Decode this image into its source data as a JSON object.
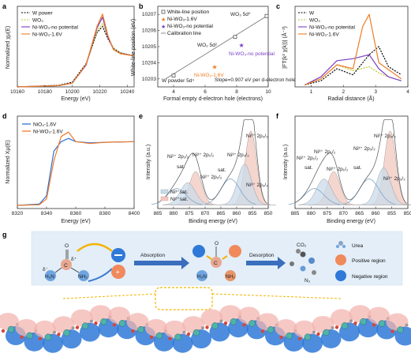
{
  "panels": {
    "a": {
      "label": "a",
      "xlabel": "Energy (eV)",
      "ylabel": "Normalized χμ(E)",
      "xticks": [
        "10160",
        "10180",
        "10200",
        "10220",
        "10240"
      ],
      "legend": [
        "W power",
        "WO₃",
        "Ni-WO₃-no potential",
        "Ni-WO₃-1.6V"
      ]
    },
    "b": {
      "label": "b",
      "xlabel": "Formal empty d-electron hole (electrons)",
      "ylabel": "White-line position (eV)",
      "xticks": [
        "4",
        "6",
        "8",
        "10"
      ],
      "yticks": [
        "10203",
        "10204",
        "10205",
        "10206",
        "10207"
      ],
      "legend": [
        "White-line position",
        "Ni-WO₃-1.6V",
        "Ni-WO₃-no potential",
        "Calibration line"
      ],
      "points": {
        "w_powder": "W powder 5d⁴",
        "wo2": "WO₂ 5d²",
        "wo3": "WO₃ 5d⁰",
        "ni_16": "Ni-WO₃-1.6V",
        "ni_np": "Ni-WO₃-no potential"
      },
      "slope": "Slope=0.907 eV per d-electron hole"
    },
    "c": {
      "label": "c",
      "xlabel": "Radial distance (Å)",
      "ylabel": "|FT(k² χ(k))| (Å⁻³)",
      "xticks": [
        "1",
        "2",
        "3",
        "4"
      ],
      "legend": [
        "W",
        "WO₃",
        "Ni-WO₃-no potential",
        "Ni-WO₃-1.6V"
      ]
    },
    "d": {
      "label": "d",
      "xlabel": "Energy (eV)",
      "ylabel": "Normalized Xμ(E)",
      "xticks": [
        "8320",
        "8340",
        "8360",
        "8380",
        "8400"
      ],
      "legend": [
        "NiO₄-1.6V",
        "Ni-WO₃-1.6V"
      ]
    },
    "e": {
      "label": "e",
      "xlabel": "Binding energy (eV)",
      "ylabel": "Intensity (a.u.)",
      "xticks": [
        "885",
        "880",
        "875",
        "870",
        "865",
        "860",
        "855",
        "850"
      ],
      "peaks": [
        "Ni²⁺ 2p₃/₂",
        "Ni³⁺ 2p₃/₂",
        "Ni³⁺ 2p₁/₂",
        "Ni²⁺ 2p₁/₂",
        "Ni²⁺ 2p₁/₂",
        "Ni³⁺ 2p₃/₂"
      ],
      "sat": [
        "sat.",
        "sat."
      ],
      "legend": [
        "Ni³⁺sat.",
        "Ni²⁺sat."
      ]
    },
    "f": {
      "label": "f",
      "xlabel": "Binding energy (eV)",
      "ylabel": "Intensity (a.u.)",
      "xticks": [
        "885",
        "880",
        "875",
        "870",
        "865",
        "860",
        "855",
        "850"
      ],
      "peaks": [
        "Ni²⁺ 2p₃/₂",
        "Ni³⁺ 2p₃/₂",
        "Ni³⁺ 2p₁/₂",
        "Ni²⁺ 2p₁/₂",
        "Ni²⁺ 2p₁/₂",
        "Ni³⁺ 2p₃/₂"
      ],
      "sat": [
        "sat.",
        "sat."
      ]
    },
    "g": {
      "label": "g",
      "absorption": "Absorption",
      "desorption": "Desorption",
      "co2": "CO₂",
      "n2": "N₂",
      "legend": [
        "Urea",
        "Positive region",
        "Negative region"
      ],
      "urea": {
        "o": "O",
        "c": "C",
        "nh2_left": "H₂N",
        "nh2_right": "NH₂",
        "delta_minus": "δ⁻",
        "delta_plus": "δ⁺"
      }
    }
  },
  "colors": {
    "w": "#000000",
    "wo3": "#b8c636",
    "ni_np": "#7a3fc4",
    "ni_16": "#ee7c22",
    "blue": "#2f6fd6",
    "orange": "#f07a2a",
    "ni3": "#c9dbe9",
    "ni2": "#f1c8bf"
  },
  "chart_data": [
    {
      "type": "line",
      "panel": "a",
      "xlabel": "Energy (eV)",
      "ylabel": "Normalized χμ(E)",
      "xlim": [
        10160,
        10245
      ],
      "series": [
        {
          "name": "W power",
          "x": [
            10160,
            10190,
            10200,
            10210,
            10218,
            10222,
            10226,
            10230,
            10235,
            10245
          ],
          "y": [
            0.0,
            0.05,
            0.15,
            0.75,
            1.75,
            1.95,
            1.55,
            1.25,
            1.1,
            1.0
          ]
        },
        {
          "name": "WO₃",
          "x": [
            10160,
            10190,
            10200,
            10210,
            10218,
            10222,
            10226,
            10230,
            10235,
            10245
          ],
          "y": [
            0.0,
            0.04,
            0.12,
            0.7,
            1.8,
            2.05,
            1.6,
            1.25,
            1.1,
            1.0
          ]
        },
        {
          "name": "Ni-WO₃-no potential",
          "x": [
            10160,
            10190,
            10200,
            10210,
            10218,
            10222,
            10226,
            10230,
            10235,
            10245
          ],
          "y": [
            0.0,
            0.04,
            0.12,
            0.7,
            1.9,
            2.25,
            1.6,
            1.2,
            1.08,
            1.0
          ]
        },
        {
          "name": "Ni-WO₃-1.6V",
          "x": [
            10160,
            10190,
            10200,
            10210,
            10218,
            10222,
            10226,
            10230,
            10235,
            10245
          ],
          "y": [
            0.0,
            0.04,
            0.12,
            0.72,
            1.95,
            2.35,
            1.65,
            1.2,
            1.07,
            1.0
          ]
        }
      ]
    },
    {
      "type": "scatter",
      "panel": "b",
      "xlabel": "Formal empty d-electron hole (electrons)",
      "ylabel": "White-line position (eV)",
      "xlim": [
        3,
        10
      ],
      "ylim": [
        10202.5,
        10207.5
      ],
      "series": [
        {
          "name": "White-line position",
          "x": [
            4.0,
            7.9,
            9.9
          ],
          "y": [
            10203.2,
            10205.6,
            10206.9
          ]
        },
        {
          "name": "Ni-WO₃-1.6V",
          "x": [
            6.6
          ],
          "y": [
            10203.75
          ]
        },
        {
          "name": "Ni-WO₃-no potential",
          "x": [
            8.3
          ],
          "y": [
            10205.1
          ]
        },
        {
          "name": "Calibration line",
          "x": [
            3.5,
            10.0
          ],
          "y": [
            10203.0,
            10206.95
          ]
        }
      ]
    },
    {
      "type": "line",
      "panel": "c",
      "xlabel": "Radial distance (Å)",
      "xlim": [
        0.5,
        4
      ],
      "series": [
        {
          "name": "W",
          "x": [
            0.8,
            1.3,
            1.8,
            2.3,
            2.8,
            3.1,
            3.4,
            3.8
          ],
          "y": [
            0.1,
            0.3,
            0.9,
            0.6,
            1.6,
            2.0,
            1.0,
            0.6
          ]
        },
        {
          "name": "WO₃",
          "x": [
            0.8,
            1.3,
            1.8,
            2.3,
            2.8,
            3.1,
            3.4,
            3.8
          ],
          "y": [
            0.1,
            0.4,
            1.1,
            0.8,
            1.0,
            0.7,
            0.5,
            0.3
          ]
        },
        {
          "name": "Ni-WO₃-no potential",
          "x": [
            0.8,
            1.3,
            1.8,
            2.3,
            2.8,
            3.1,
            3.4,
            3.8
          ],
          "y": [
            0.1,
            0.5,
            1.3,
            1.4,
            1.6,
            0.9,
            0.5,
            0.3
          ]
        },
        {
          "name": "Ni-WO₃-1.6V",
          "x": [
            0.8,
            1.3,
            1.8,
            2.3,
            2.6,
            2.8,
            3.1,
            3.8
          ],
          "y": [
            0.1,
            0.4,
            1.1,
            0.9,
            3.0,
            3.6,
            1.2,
            0.4
          ]
        }
      ]
    },
    {
      "type": "line",
      "panel": "d",
      "xlabel": "Energy (eV)",
      "ylabel": "Normalized Xμ(E)",
      "xlim": [
        8320,
        8400
      ],
      "series": [
        {
          "name": "NiO₄-1.6V",
          "x": [
            8320,
            8335,
            8340,
            8345,
            8350,
            8355,
            8360,
            8370,
            8380,
            8400
          ],
          "y": [
            0.0,
            0.02,
            0.15,
            0.85,
            1.0,
            1.05,
            1.0,
            0.98,
            0.99,
            1.0
          ]
        },
        {
          "name": "Ni-WO₃-1.6V",
          "x": [
            8320,
            8335,
            8340,
            8345,
            8350,
            8355,
            8360,
            8370,
            8380,
            8400
          ],
          "y": [
            0.0,
            0.01,
            0.1,
            0.7,
            1.08,
            1.15,
            1.0,
            0.97,
            0.99,
            1.0
          ]
        }
      ]
    },
    {
      "type": "area",
      "panel": "e",
      "xlabel": "Binding energy (eV)",
      "ylabel": "Intensity (a.u.)",
      "xlim": [
        885,
        850
      ],
      "series": [
        {
          "name": "Ni²⁺ 2p₃/₂",
          "x": [
            855.5
          ],
          "y": [
            1.0
          ]
        },
        {
          "name": "Ni³⁺ 2p₃/₂",
          "x": [
            857.5
          ],
          "y": [
            0.55
          ]
        },
        {
          "name": "Ni²⁺ 2p₁/₂",
          "x": [
            873.0
          ],
          "y": [
            0.45
          ]
        },
        {
          "name": "Ni³⁺ 2p₁/₂",
          "x": [
            875.5
          ],
          "y": [
            0.3
          ]
        }
      ]
    },
    {
      "type": "area",
      "panel": "f",
      "xlabel": "Binding energy (eV)",
      "ylabel": "Intensity (a.u.)",
      "xlim": [
        885,
        850
      ],
      "series": [
        {
          "name": "Ni²⁺ 2p₃/₂",
          "x": [
            855.5
          ],
          "y": [
            1.0
          ]
        },
        {
          "name": "Ni³⁺ 2p₃/₂",
          "x": [
            857.5
          ],
          "y": [
            0.5
          ]
        },
        {
          "name": "Ni²⁺ 2p₁/₂",
          "x": [
            873.0
          ],
          "y": [
            0.45
          ]
        },
        {
          "name": "Ni³⁺ 2p₁/₂",
          "x": [
            876.0
          ],
          "y": [
            0.35
          ]
        }
      ]
    }
  ]
}
